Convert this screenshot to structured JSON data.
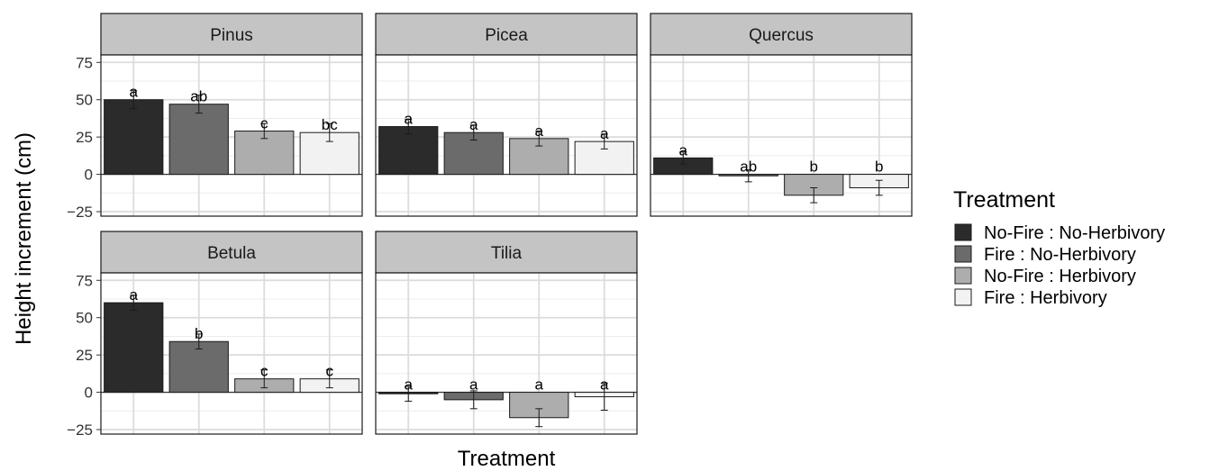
{
  "chart_data": {
    "type": "bar",
    "xlabel": "Treatment",
    "ylabel": "Height increment (cm)",
    "ylim": [
      -28,
      80
    ],
    "y_ticks": [
      -25,
      0,
      25,
      50,
      75
    ],
    "grid": true,
    "legend": {
      "title": "Treatment",
      "position": "right",
      "items": [
        {
          "label": "No-Fire : No-Herbivory",
          "color": "#2b2b2b"
        },
        {
          "label": "Fire : No-Herbivory",
          "color": "#6b6b6b"
        },
        {
          "label": "No-Fire : Herbivory",
          "color": "#adadad"
        },
        {
          "label": "Fire : Herbivory",
          "color": "#f2f2f2"
        }
      ]
    },
    "panels": [
      {
        "title": "Pinus",
        "values": [
          50,
          47,
          29,
          28
        ],
        "errors": [
          6,
          6,
          5,
          6
        ],
        "letters": [
          "a",
          "ab",
          "c",
          "bc"
        ]
      },
      {
        "title": "Picea",
        "values": [
          32,
          28,
          24,
          22
        ],
        "errors": [
          5,
          5,
          5,
          5
        ],
        "letters": [
          "a",
          "a",
          "a",
          "a"
        ]
      },
      {
        "title": "Quercus",
        "values": [
          11,
          -1,
          -14,
          -9
        ],
        "errors": [
          4,
          4,
          5,
          5
        ],
        "letters": [
          "a",
          "ab",
          "b",
          "b"
        ]
      },
      {
        "title": "Betula",
        "values": [
          60,
          34,
          9,
          9
        ],
        "errors": [
          5,
          5,
          6,
          6
        ],
        "letters": [
          "a",
          "b",
          "c",
          "c"
        ]
      },
      {
        "title": "Tilia",
        "values": [
          -1,
          -5,
          -17,
          -3
        ],
        "errors": [
          5,
          6,
          6,
          9
        ],
        "letters": [
          "a",
          "a",
          "a",
          "a"
        ]
      }
    ]
  }
}
